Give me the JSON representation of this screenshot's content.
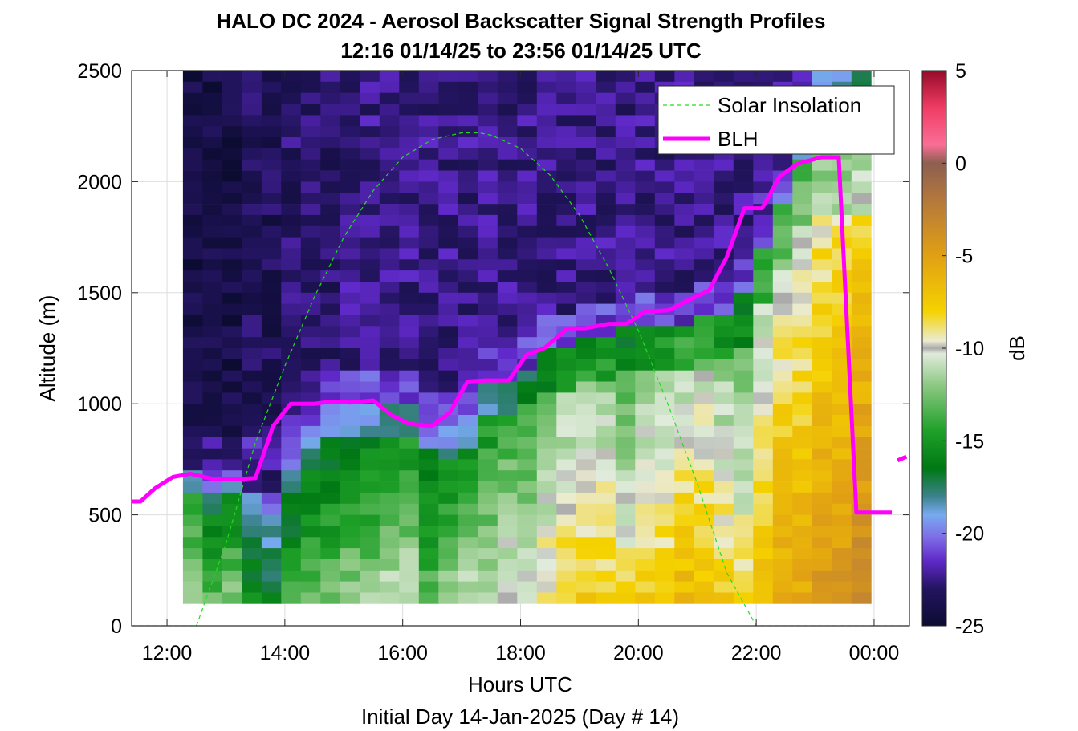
{
  "chart_data": {
    "type": "heatmap",
    "title": "HALO DC 2024 - Aerosol Backscatter Signal Strength Profiles",
    "subtitle": "12:16 01/14/25 to 23:56 01/14/25  UTC",
    "xlabel": "Hours UTC",
    "xlabel2": "Initial Day 14-Jan-2025 (Day # 14)",
    "ylabel": "Altitude (m)",
    "colorbar_label": "dB",
    "xlim": [
      11.4,
      24.6
    ],
    "ylim": [
      0,
      2500
    ],
    "x_ticks": [
      12,
      14,
      16,
      18,
      20,
      22,
      24
    ],
    "x_tick_labels": [
      "12:00",
      "14:00",
      "16:00",
      "18:00",
      "20:00",
      "22:00",
      "00:00"
    ],
    "y_ticks": [
      0,
      500,
      1000,
      1500,
      2000,
      2500
    ],
    "y_tick_labels": [
      "0",
      "500",
      "1000",
      "1500",
      "2000",
      "2500"
    ],
    "clim": [
      -25,
      5
    ],
    "colorbar_ticks": [
      5,
      0,
      -5,
      -10,
      -15,
      -20,
      -25
    ],
    "colorbar_tick_labels": [
      "5",
      "0",
      "-5",
      "-10",
      "-15",
      "-20",
      "-25"
    ],
    "grid": true,
    "legend_position": "top-right",
    "series": [
      {
        "name": "Solar Insolation",
        "style": "dashed",
        "color": "#22dd22",
        "x": [
          11.4,
          12.5,
          13.0,
          13.5,
          14.0,
          14.5,
          15.0,
          15.5,
          16.0,
          16.5,
          17.0,
          17.3,
          17.5,
          18.0,
          18.5,
          19.0,
          19.5,
          20.0,
          20.5,
          21.0,
          21.5,
          22.0,
          22.1,
          24.6
        ],
        "y": [
          0,
          0,
          370,
          825,
          1170,
          1480,
          1750,
          1960,
          2110,
          2190,
          2220,
          2220,
          2210,
          2150,
          2030,
          1850,
          1610,
          1330,
          1000,
          640,
          240,
          0,
          0,
          0
        ]
      },
      {
        "name": "BLH",
        "style": "solid",
        "color": "#ff00ff",
        "x": [
          11.4,
          11.55,
          11.8,
          12.1,
          12.4,
          12.8,
          13.1,
          13.5,
          13.8,
          14.1,
          14.5,
          14.8,
          15.1,
          15.5,
          15.8,
          16.1,
          16.5,
          16.8,
          17.1,
          17.4,
          17.8,
          18.1,
          18.4,
          18.8,
          19.1,
          19.5,
          19.8,
          20.1,
          20.5,
          20.8,
          21.2,
          21.5,
          21.8,
          22.1,
          22.4,
          22.7,
          23.1,
          23.4,
          23.7,
          23.85,
          24.0,
          24.3
        ],
        "y": [
          560,
          560,
          620,
          670,
          685,
          660,
          660,
          665,
          900,
          1000,
          1000,
          1010,
          1005,
          1015,
          950,
          910,
          900,
          960,
          1100,
          1105,
          1105,
          1220,
          1250,
          1340,
          1340,
          1360,
          1360,
          1415,
          1420,
          1460,
          1510,
          1660,
          1880,
          1880,
          2025,
          2080,
          2110,
          2110,
          510,
          510,
          510,
          510
        ],
        "extra_segment": {
          "x": [
            24.4,
            24.55
          ],
          "y": [
            745,
            762
          ]
        }
      }
    ],
    "heatmap": {
      "x_start": 12.27,
      "x_step": 0.3337,
      "y_bin_top_m": 2500,
      "y_bin_step_m": 50,
      "n_columns": 35,
      "n_rows": 48,
      "column_profiles": [
        {
          "blh": 700,
          "base_db": -24,
          "sfc_db": -10
        },
        {
          "blh": 690,
          "base_db": -24,
          "sfc_db": -12
        },
        {
          "blh": 680,
          "base_db": -24,
          "sfc_db": -11
        },
        {
          "blh": 680,
          "base_db": -23.5,
          "sfc_db": -14
        },
        {
          "blh": 690,
          "base_db": -23.5,
          "sfc_db": -15
        },
        {
          "blh": 800,
          "base_db": -23,
          "sfc_db": -13
        },
        {
          "blh": 950,
          "base_db": -23,
          "sfc_db": -12
        },
        {
          "blh": 1000,
          "base_db": -23,
          "sfc_db": -12
        },
        {
          "blh": 1000,
          "base_db": -22.5,
          "sfc_db": -11
        },
        {
          "blh": 1000,
          "base_db": -22.5,
          "sfc_db": -11
        },
        {
          "blh": 1000,
          "base_db": -22.5,
          "sfc_db": -10
        },
        {
          "blh": 980,
          "base_db": -22.5,
          "sfc_db": -10
        },
        {
          "blh": 920,
          "base_db": -22.5,
          "sfc_db": -12
        },
        {
          "blh": 900,
          "base_db": -22.5,
          "sfc_db": -11
        },
        {
          "blh": 940,
          "base_db": -22.5,
          "sfc_db": -10
        },
        {
          "blh": 1100,
          "base_db": -22.5,
          "sfc_db": -10
        },
        {
          "blh": 1120,
          "base_db": -22.5,
          "sfc_db": -9
        },
        {
          "blh": 1150,
          "base_db": -22.5,
          "sfc_db": -9
        },
        {
          "blh": 1230,
          "base_db": -22.5,
          "sfc_db": -8
        },
        {
          "blh": 1260,
          "base_db": -22.5,
          "sfc_db": -7
        },
        {
          "blh": 1300,
          "base_db": -22.5,
          "sfc_db": -7
        },
        {
          "blh": 1320,
          "base_db": -22.5,
          "sfc_db": -7
        },
        {
          "blh": 1330,
          "base_db": -22.5,
          "sfc_db": -8
        },
        {
          "blh": 1340,
          "base_db": -22.5,
          "sfc_db": -7
        },
        {
          "blh": 1360,
          "base_db": -22.5,
          "sfc_db": -7
        },
        {
          "blh": 1360,
          "base_db": -22.5,
          "sfc_db": -6
        },
        {
          "blh": 1380,
          "base_db": -22.5,
          "sfc_db": -6
        },
        {
          "blh": 1420,
          "base_db": -22.5,
          "sfc_db": -7
        },
        {
          "blh": 1480,
          "base_db": -22.5,
          "sfc_db": -8
        },
        {
          "blh": 1720,
          "base_db": -22,
          "sfc_db": -6
        },
        {
          "blh": 1900,
          "base_db": -22,
          "sfc_db": -5
        },
        {
          "blh": 2100,
          "base_db": -21,
          "sfc_db": -5
        },
        {
          "blh": 2150,
          "base_db": -20,
          "sfc_db": -4
        },
        {
          "blh": 2200,
          "base_db": -19,
          "sfc_db": -4
        },
        {
          "blh": 2200,
          "base_db": -18,
          "sfc_db": -3
        }
      ]
    }
  }
}
